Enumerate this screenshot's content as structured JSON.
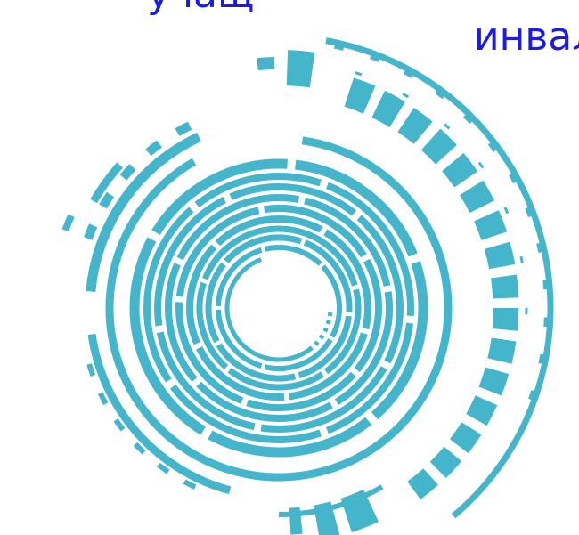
{
  "captions": {
    "top": "учащ",
    "right": "инвал"
  },
  "colors": {
    "ring": "#45b5cc",
    "text": "#1c1ce0",
    "background": "#ffffff"
  },
  "graphic": {
    "name": "concentric-ring-emblem"
  }
}
